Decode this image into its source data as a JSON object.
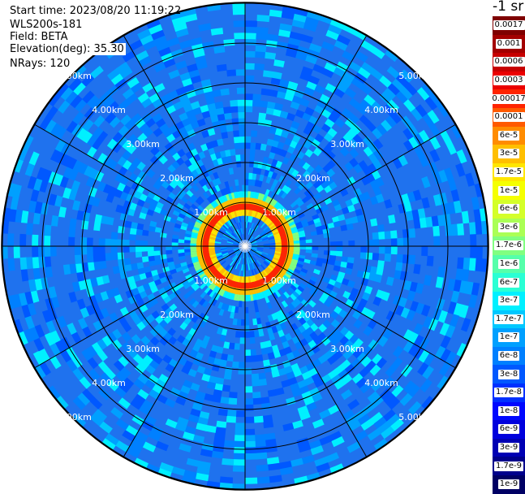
{
  "header": {
    "start_time": "Start time: 2023/08/20 11:19:22",
    "instrument": "WLS200s-181",
    "field": "Field: BETA",
    "elevation": "Elevation(deg): 35.30",
    "nrays": "NRays: 120"
  },
  "colorbar": {
    "unit_label": "-1 sr",
    "labels": [
      "0.0017",
      "0.001",
      "0.0006",
      "0.0003",
      "0.00017",
      "0.0001",
      "6e-5",
      "3e-5",
      "1.7e-5",
      "1e-5",
      "6e-6",
      "3e-6",
      "1.7e-6",
      "1e-6",
      "6e-7",
      "3e-7",
      "1.7e-7",
      "1e-7",
      "6e-8",
      "3e-8",
      "1.7e-8",
      "1e-8",
      "6e-9",
      "3e-9",
      "1.7e-9",
      "1e-9"
    ],
    "colors": [
      "#7f0000",
      "#a30000",
      "#c70000",
      "#eb0000",
      "#ff2400",
      "#ff5a00",
      "#ff8c00",
      "#ffbf00",
      "#ffe600",
      "#f5ff00",
      "#d4ff2a",
      "#aaff55",
      "#80ff80",
      "#55ffaa",
      "#2affd4",
      "#00f0ff",
      "#00c8ff",
      "#00a0ff",
      "#0080ff",
      "#0058ff",
      "#0030ff",
      "#0008ff",
      "#0000dd",
      "#0000b4",
      "#00008c",
      "#000064"
    ]
  },
  "map": {
    "range_labels": [
      "1.00km",
      "2.00km",
      "3.00km",
      "4.00km",
      "5.00km"
    ],
    "ring_count": 6,
    "spoke_count": 12,
    "rings_max_km": 6,
    "ring_peak_km": 0.8,
    "background_color": "#1f72ee"
  }
}
